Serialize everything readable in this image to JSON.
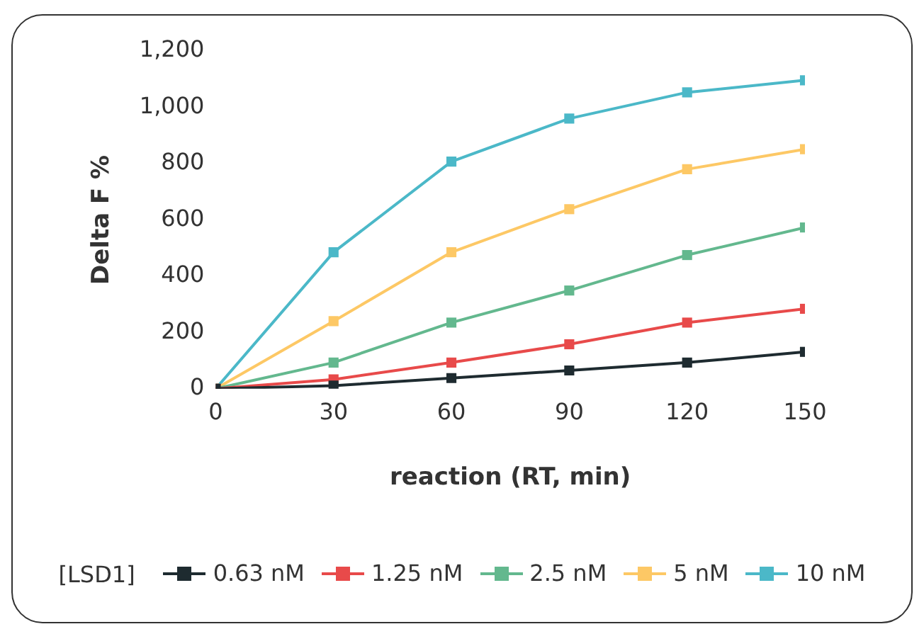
{
  "chart_data": {
    "type": "line",
    "xlabel": "reaction (RT, min)",
    "ylabel": "Delta F %",
    "legend_title": "[LSD1]",
    "legend": "bottom",
    "marker": "square",
    "grid": false,
    "x": [
      0,
      30,
      60,
      90,
      120,
      150
    ],
    "xlim": [
      0,
      150
    ],
    "xticks": [
      0,
      30,
      60,
      90,
      120,
      150
    ],
    "ylim": [
      0,
      1200
    ],
    "yticks": [
      0,
      {
        "value": 200,
        "label": "200"
      },
      {
        "value": 400,
        "label": "400"
      },
      {
        "value": 600,
        "label": "600"
      },
      {
        "value": 800,
        "label": "800"
      },
      {
        "value": 1000,
        "label": "1,000"
      },
      {
        "value": 1200,
        "label": "1,200"
      }
    ],
    "series": [
      {
        "name": "0.63 nM",
        "color": "#1e2b30",
        "values": [
          0,
          11,
          38,
          65,
          93,
          131
        ]
      },
      {
        "name": "1.25 nM",
        "color": "#e84a4a",
        "values": [
          0,
          33,
          93,
          158,
          235,
          284
        ]
      },
      {
        "name": "2.5 nM",
        "color": "#63b88e",
        "values": [
          0,
          93,
          235,
          349,
          475,
          573
        ]
      },
      {
        "name": "5 nM",
        "color": "#fdc865",
        "values": [
          0,
          240,
          485,
          638,
          780,
          851
        ]
      },
      {
        "name": "10 nM",
        "color": "#4bb8c8",
        "values": [
          0,
          485,
          807,
          960,
          1053,
          1096
        ]
      }
    ]
  }
}
